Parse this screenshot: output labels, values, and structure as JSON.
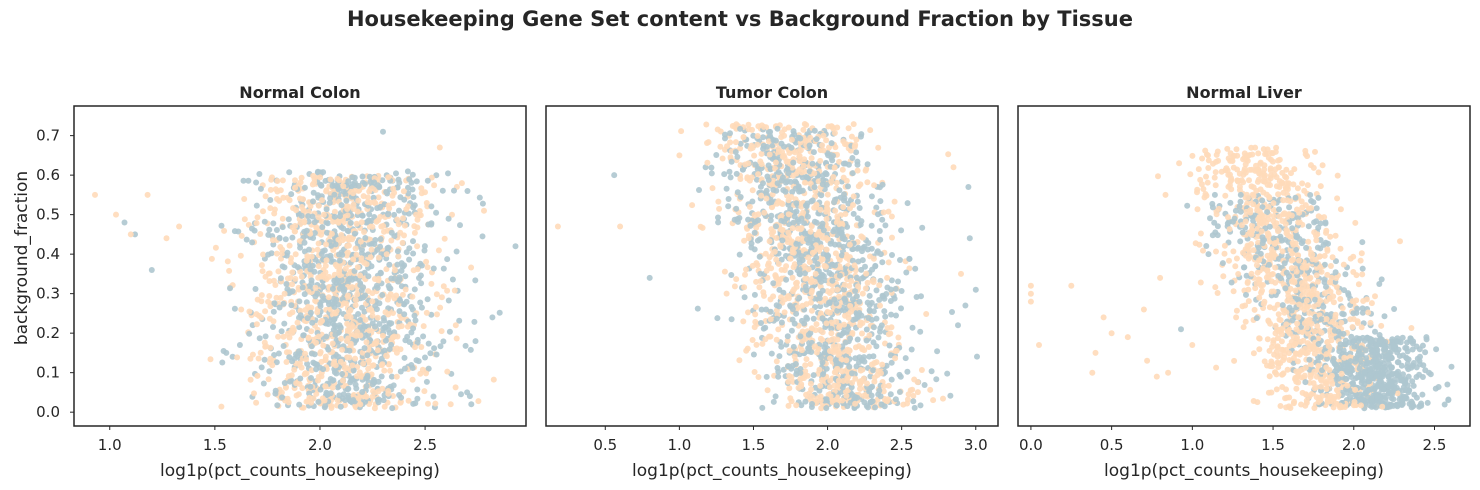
{
  "figure": {
    "suptitle": "Housekeeping Gene Set content vs Background Fraction by Tissue",
    "shared_ylabel": "background_fraction"
  },
  "colors": {
    "series_a": "#aec6cf",
    "series_b": "#ffdab9",
    "frame": "#262626",
    "text": "#262626"
  },
  "chart_data": [
    {
      "type": "scatter",
      "title": "Normal Colon",
      "xlabel": "log1p(pct_counts_housekeeping)",
      "ylabel": "background_fraction",
      "xlim": [
        0.83,
        2.98
      ],
      "ylim": [
        -0.035,
        0.775
      ],
      "xticks": [
        1.0,
        1.5,
        2.0,
        2.5
      ],
      "xtick_labels": [
        "1.0",
        "1.5",
        "2.0",
        "2.5"
      ],
      "yticks": [
        0.0,
        0.1,
        0.2,
        0.3,
        0.4,
        0.5,
        0.6,
        0.7
      ],
      "ytick_labels": [
        "0.0",
        "0.1",
        "0.2",
        "0.3",
        "0.4",
        "0.5",
        "0.6",
        "0.7"
      ],
      "grid": false,
      "series": [
        {
          "color": "#aec6cf",
          "cloud": {
            "x_mean": 2.12,
            "x_sd": 0.22,
            "y_min": 0.01,
            "y_max": 0.61,
            "n": 900
          },
          "points": [
            [
              1.07,
              0.48
            ],
            [
              1.12,
              0.45
            ],
            [
              1.2,
              0.36
            ],
            [
              2.3,
              0.71
            ],
            [
              2.74,
              0.18
            ],
            [
              2.82,
              0.24
            ],
            [
              2.93,
              0.42
            ],
            [
              2.7,
              0.05
            ],
            [
              2.72,
              0.02
            ]
          ]
        },
        {
          "color": "#ffdab9",
          "cloud": {
            "x_mean": 2.1,
            "x_sd": 0.22,
            "y_min": 0.01,
            "y_max": 0.6,
            "n": 900
          },
          "points": [
            [
              0.93,
              0.55
            ],
            [
              1.03,
              0.5
            ],
            [
              1.1,
              0.45
            ],
            [
              1.18,
              0.55
            ],
            [
              1.27,
              0.44
            ],
            [
              1.33,
              0.47
            ],
            [
              2.57,
              0.67
            ],
            [
              2.78,
              0.51
            ]
          ]
        }
      ]
    },
    {
      "type": "scatter",
      "title": "Tumor Colon",
      "xlabel": "log1p(pct_counts_housekeeping)",
      "ylabel": "",
      "xlim": [
        0.1,
        3.15
      ],
      "ylim": [
        -0.035,
        0.775
      ],
      "xticks": [
        0.5,
        1.0,
        1.5,
        2.0,
        2.5,
        3.0
      ],
      "xtick_labels": [
        "0.5",
        "1.0",
        "1.5",
        "2.0",
        "2.5",
        "3.0"
      ],
      "yticks": [],
      "ytick_labels": [],
      "grid": false,
      "series": [
        {
          "color": "#aec6cf",
          "cloud": {
            "x_mean_top": 1.75,
            "x_mean_bottom": 2.15,
            "x_sd": 0.26,
            "y_min": 0.01,
            "y_max": 0.72,
            "n": 950
          },
          "points": [
            [
              0.56,
              0.6
            ],
            [
              0.8,
              0.34
            ],
            [
              2.95,
              0.57
            ],
            [
              3.0,
              0.31
            ],
            [
              2.93,
              0.27
            ],
            [
              2.88,
              0.22
            ],
            [
              2.96,
              0.44
            ]
          ]
        },
        {
          "color": "#ffdab9",
          "cloud": {
            "x_mean_top": 1.7,
            "x_mean_bottom": 2.1,
            "x_sd": 0.25,
            "y_min": 0.01,
            "y_max": 0.73,
            "n": 950
          },
          "points": [
            [
              0.18,
              0.47
            ],
            [
              0.6,
              0.47
            ],
            [
              1.0,
              0.65
            ],
            [
              2.85,
              0.62
            ],
            [
              2.9,
              0.35
            ]
          ]
        }
      ]
    },
    {
      "type": "scatter",
      "title": "Normal Liver",
      "xlabel": "log1p(pct_counts_housekeeping)",
      "ylabel": "",
      "xlim": [
        -0.08,
        2.72
      ],
      "ylim": [
        -0.035,
        0.775
      ],
      "xticks": [
        0.0,
        0.5,
        1.0,
        1.5,
        2.0,
        2.5
      ],
      "xtick_labels": [
        "0.0",
        "0.5",
        "1.0",
        "1.5",
        "2.0",
        "2.5"
      ],
      "yticks": [],
      "ytick_labels": [],
      "grid": false,
      "series": [
        {
          "color": "#aec6cf",
          "cloud": {
            "x_at_y_high": 1.35,
            "x_at_y_low": 2.15,
            "x_sd": 0.18,
            "y_min": 0.01,
            "y_max": 0.55,
            "n": 850
          },
          "points": [
            [
              0.93,
              0.21
            ],
            [
              1.3,
              0.55
            ],
            [
              2.45,
              0.19
            ],
            [
              2.58,
              0.07
            ],
            [
              1.1,
              0.4
            ]
          ]
        },
        {
          "color": "#ffdab9",
          "cloud": {
            "x_at_y_high": 1.35,
            "x_at_y_low": 1.85,
            "x_sd": 0.2,
            "y_min": 0.01,
            "y_max": 0.67,
            "n": 950
          },
          "points": [
            [
              0.0,
              0.32
            ],
            [
              0.0,
              0.3
            ],
            [
              0.0,
              0.28
            ],
            [
              0.05,
              0.17
            ],
            [
              0.25,
              0.32
            ],
            [
              0.4,
              0.15
            ],
            [
              0.38,
              0.1
            ],
            [
              0.45,
              0.24
            ],
            [
              0.5,
              0.2
            ],
            [
              0.7,
              0.26
            ],
            [
              0.72,
              0.13
            ],
            [
              0.78,
              0.09
            ],
            [
              0.8,
              0.34
            ],
            [
              0.85,
              0.1
            ],
            [
              1.0,
              0.17
            ],
            [
              0.6,
              0.19
            ]
          ]
        }
      ]
    }
  ]
}
